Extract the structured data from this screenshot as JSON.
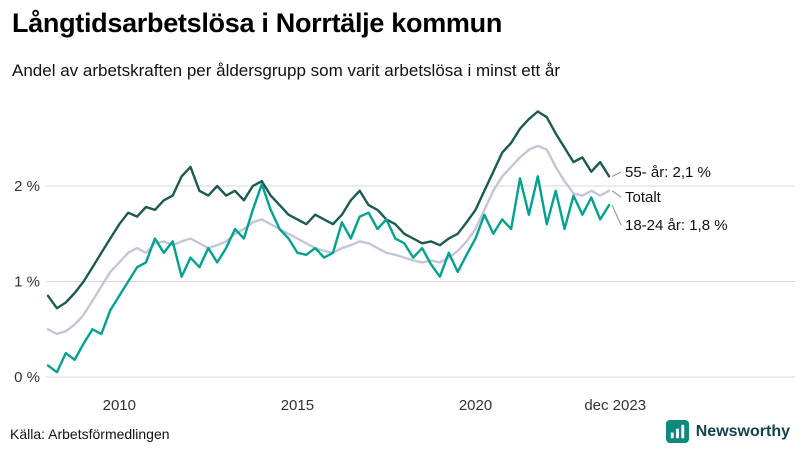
{
  "header": {
    "title": "Långtidsarbetslösa i Norrtälje kommun",
    "subtitle": "Andel av arbetskraften per åldersgrupp som varit arbetslösa i minst ett år"
  },
  "footer": {
    "source": "Källa: Arbetsförmedlingen",
    "brand": "Newsworthy"
  },
  "colors": {
    "grid": "#d8d8e2",
    "leader": "#9aa0a6",
    "brand_teal": "#0e8a7c",
    "brand_text": "#15414b"
  },
  "chart_data": {
    "type": "line",
    "title": "Långtidsarbetslösa i Norrtälje kommun",
    "subtitle": "Andel av arbetskraften per åldersgrupp som varit arbetslösa i minst ett år",
    "unit": "%",
    "xlabel": "",
    "ylabel": "",
    "xlim": [
      2008,
      2024
    ],
    "ylim": [
      0,
      2.9
    ],
    "grid": "horizontal-only",
    "legend_position": "direct-labels-right",
    "yticks": [
      {
        "v": 0,
        "label": "0 %"
      },
      {
        "v": 1,
        "label": "1 %"
      },
      {
        "v": 2,
        "label": "2 %"
      }
    ],
    "xticks": [
      {
        "v": 2010,
        "label": "2010"
      },
      {
        "v": 2015,
        "label": "2015"
      },
      {
        "v": 2020,
        "label": "2020"
      },
      {
        "v": 2023.92,
        "label": "dec 2023"
      }
    ],
    "x": [
      2008,
      2008.25,
      2008.5,
      2008.75,
      2009,
      2009.25,
      2009.5,
      2009.75,
      2010,
      2010.25,
      2010.5,
      2010.75,
      2011,
      2011.25,
      2011.5,
      2011.75,
      2012,
      2012.25,
      2012.5,
      2012.75,
      2013,
      2013.25,
      2013.5,
      2013.75,
      2014,
      2014.25,
      2014.5,
      2014.75,
      2015,
      2015.25,
      2015.5,
      2015.75,
      2016,
      2016.25,
      2016.5,
      2016.75,
      2017,
      2017.25,
      2017.5,
      2017.75,
      2018,
      2018.25,
      2018.5,
      2018.75,
      2019,
      2019.25,
      2019.5,
      2019.75,
      2020,
      2020.25,
      2020.5,
      2020.75,
      2021,
      2021.25,
      2021.5,
      2021.75,
      2022,
      2022.25,
      2022.5,
      2022.75,
      2023,
      2023.25,
      2023.5,
      2023.75
    ],
    "series": [
      {
        "name": "55- år",
        "label": "55- år: 2,1 %",
        "end_value": 2.1,
        "color": "#1d5a52",
        "z": 1,
        "end_label_y": 77,
        "values": [
          0.85,
          0.72,
          0.78,
          0.88,
          1.0,
          1.15,
          1.3,
          1.45,
          1.6,
          1.72,
          1.68,
          1.78,
          1.75,
          1.85,
          1.9,
          2.1,
          2.2,
          1.95,
          1.9,
          2.0,
          1.9,
          1.95,
          1.85,
          2.0,
          2.05,
          1.9,
          1.8,
          1.7,
          1.65,
          1.6,
          1.7,
          1.65,
          1.6,
          1.7,
          1.85,
          1.95,
          1.8,
          1.75,
          1.65,
          1.6,
          1.5,
          1.45,
          1.4,
          1.42,
          1.38,
          1.45,
          1.5,
          1.62,
          1.75,
          1.95,
          2.15,
          2.35,
          2.45,
          2.6,
          2.7,
          2.78,
          2.72,
          2.55,
          2.4,
          2.25,
          2.3,
          2.15,
          2.25,
          2.1
        ]
      },
      {
        "name": "Totalt",
        "label": "Totalt",
        "end_value": 1.95,
        "color": "#c6c5d8",
        "z": 0,
        "end_label_y": 102,
        "values": [
          0.5,
          0.45,
          0.48,
          0.55,
          0.65,
          0.8,
          0.95,
          1.1,
          1.2,
          1.3,
          1.35,
          1.3,
          1.4,
          1.42,
          1.38,
          1.42,
          1.45,
          1.4,
          1.35,
          1.38,
          1.42,
          1.5,
          1.55,
          1.62,
          1.65,
          1.6,
          1.55,
          1.5,
          1.45,
          1.4,
          1.35,
          1.32,
          1.3,
          1.35,
          1.38,
          1.42,
          1.4,
          1.35,
          1.3,
          1.28,
          1.25,
          1.22,
          1.2,
          1.22,
          1.2,
          1.25,
          1.32,
          1.42,
          1.55,
          1.75,
          1.95,
          2.1,
          2.2,
          2.3,
          2.38,
          2.42,
          2.38,
          2.2,
          2.05,
          1.92,
          1.9,
          1.95,
          1.9,
          1.95
        ]
      },
      {
        "name": "18-24 år",
        "label": "18-24 år: 1,8 %",
        "end_value": 1.8,
        "color": "#00a18f",
        "z": 2,
        "end_label_y": 130,
        "values": [
          0.12,
          0.05,
          0.25,
          0.18,
          0.35,
          0.5,
          0.45,
          0.7,
          0.85,
          1.0,
          1.15,
          1.2,
          1.45,
          1.3,
          1.42,
          1.05,
          1.25,
          1.15,
          1.35,
          1.2,
          1.35,
          1.55,
          1.45,
          1.75,
          2.02,
          1.75,
          1.55,
          1.45,
          1.3,
          1.28,
          1.35,
          1.25,
          1.3,
          1.62,
          1.45,
          1.68,
          1.72,
          1.55,
          1.65,
          1.45,
          1.4,
          1.25,
          1.35,
          1.18,
          1.05,
          1.3,
          1.1,
          1.28,
          1.45,
          1.7,
          1.5,
          1.65,
          1.55,
          2.08,
          1.7,
          2.1,
          1.6,
          1.95,
          1.55,
          1.9,
          1.7,
          1.88,
          1.65,
          1.8
        ]
      }
    ]
  }
}
